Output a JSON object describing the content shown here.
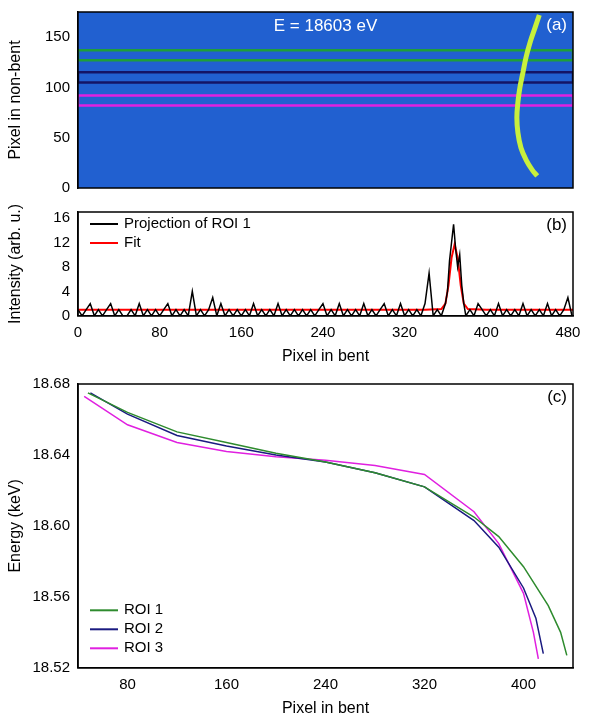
{
  "chart_data": [
    {
      "type": "image",
      "title": "E = 18603 eV",
      "annotations": [
        "(a)"
      ],
      "y_label": "Pixel in non-bent",
      "xlim": [
        0,
        485
      ],
      "ylim": [
        0,
        175
      ],
      "yticks": [
        0,
        50,
        100,
        150
      ],
      "tick_labels": "y",
      "grid": false,
      "series": [
        {
          "color": "#c8f03c",
          "x": [
            452,
            448,
            443,
            439,
            436,
            433,
            431,
            430,
            431,
            434,
            439,
            445,
            450
          ],
          "values": [
            172,
            160,
            145,
            130,
            115,
            100,
            85,
            70,
            55,
            40,
            28,
            18,
            12
          ]
        }
      ],
      "rois": [
        {
          "color": "#1f9e3a",
          "x": [
            0,
            485
          ],
          "y": [
            127,
            137
          ]
        },
        {
          "color": "#141466",
          "x": [
            0,
            485
          ],
          "y": [
            105,
            115
          ]
        },
        {
          "color": "#e020e0",
          "x": [
            0,
            485
          ],
          "y": [
            82,
            92
          ]
        }
      ]
    },
    {
      "type": "line",
      "annotations": [
        "(b)"
      ],
      "x_label": "Pixel in bent",
      "y_label": "Intensity (arb. u.)",
      "xlim": [
        0,
        485
      ],
      "xticks": [
        0,
        80,
        160,
        240,
        320,
        400,
        480
      ],
      "ylim": [
        0,
        17
      ],
      "yticks": [
        0,
        4,
        8,
        12,
        16
      ],
      "grid": false,
      "legend": "upper left",
      "series": [
        {
          "name": "Projection of ROI 1",
          "color": "#000000",
          "x": [
            0,
            4,
            8,
            12,
            16,
            20,
            24,
            28,
            32,
            36,
            40,
            44,
            48,
            52,
            56,
            60,
            64,
            68,
            72,
            76,
            80,
            84,
            88,
            92,
            96,
            100,
            104,
            108,
            112,
            116,
            120,
            124,
            128,
            132,
            136,
            140,
            144,
            148,
            152,
            156,
            160,
            164,
            168,
            172,
            176,
            180,
            184,
            188,
            192,
            196,
            200,
            204,
            208,
            212,
            216,
            220,
            224,
            228,
            232,
            236,
            240,
            244,
            248,
            252,
            256,
            260,
            264,
            268,
            272,
            276,
            280,
            284,
            288,
            292,
            296,
            300,
            304,
            308,
            312,
            316,
            320,
            324,
            328,
            332,
            336,
            340,
            344,
            348,
            352,
            356,
            360,
            362,
            364,
            366,
            368,
            370,
            372,
            374,
            376,
            378,
            380,
            384,
            388,
            392,
            396,
            400,
            404,
            408,
            412,
            416,
            420,
            424,
            428,
            432,
            436,
            440,
            444,
            448,
            452,
            456,
            460,
            464,
            468,
            472,
            476,
            480,
            484
          ],
          "values": [
            1,
            0,
            1,
            2,
            0,
            1,
            0,
            1,
            2,
            0,
            1,
            0,
            0,
            1,
            0,
            2,
            0,
            1,
            0,
            1,
            0,
            1,
            2,
            0,
            1,
            0,
            1,
            0,
            4,
            0,
            1,
            0,
            1,
            3,
            0,
            2,
            0,
            1,
            0,
            1,
            0,
            1,
            0,
            2,
            0,
            1,
            0,
            1,
            0,
            2,
            0,
            1,
            0,
            1,
            0,
            1,
            0,
            1,
            0,
            1,
            2,
            0,
            1,
            0,
            2,
            0,
            1,
            0,
            1,
            0,
            2,
            0,
            1,
            0,
            1,
            2,
            0,
            1,
            0,
            2,
            0,
            1,
            0,
            1,
            0,
            2,
            7,
            0,
            1,
            0,
            2,
            4,
            9,
            12,
            15,
            11,
            8,
            10,
            5,
            2,
            0,
            1,
            0,
            2,
            1,
            0,
            1,
            0,
            2,
            0,
            1,
            0,
            1,
            0,
            2,
            0,
            1,
            0,
            1,
            0,
            2,
            0,
            1,
            0,
            1,
            3,
            0
          ]
        },
        {
          "name": "Fit",
          "color": "#ff0000",
          "x": [
            0,
            340,
            356,
            360,
            363,
            366,
            369,
            372,
            375,
            378,
            382,
            400,
            485
          ],
          "values": [
            1,
            1,
            1.1,
            2,
            5,
            9.5,
            11.7,
            9.5,
            5,
            2,
            1.1,
            1,
            1
          ]
        }
      ]
    },
    {
      "type": "line",
      "annotations": [
        "(c)"
      ],
      "x_label": "Pixel in bent",
      "y_label": "Energy (keV)",
      "xlim": [
        40,
        440
      ],
      "xticks": [
        80,
        160,
        240,
        320,
        400
      ],
      "ylim": [
        18.52,
        18.68
      ],
      "yticks": [
        18.52,
        18.56,
        {
          "value": 18.6,
          "label": "18.60"
        },
        18.64,
        18.68
      ],
      "grid": false,
      "legend": "lower left",
      "series": [
        {
          "name": "ROI 1",
          "color": "#2e8b2e",
          "x": [
            48,
            80,
            120,
            160,
            200,
            240,
            280,
            320,
            360,
            380,
            400,
            420,
            430,
            435
          ],
          "values": [
            18.675,
            18.664,
            18.653,
            18.647,
            18.641,
            18.636,
            18.63,
            18.622,
            18.605,
            18.594,
            18.577,
            18.555,
            18.54,
            18.527
          ]
        },
        {
          "name": "ROI 2",
          "color": "#1a1a80",
          "x": [
            50,
            80,
            120,
            160,
            200,
            240,
            280,
            320,
            360,
            380,
            400,
            410,
            416
          ],
          "values": [
            18.675,
            18.663,
            18.651,
            18.645,
            18.64,
            18.636,
            18.63,
            18.622,
            18.603,
            18.588,
            18.565,
            18.548,
            18.528
          ]
        },
        {
          "name": "ROI 3",
          "color": "#e020e0",
          "x": [
            45,
            80,
            120,
            160,
            200,
            240,
            280,
            320,
            360,
            380,
            400,
            408,
            412
          ],
          "values": [
            18.673,
            18.657,
            18.647,
            18.642,
            18.639,
            18.637,
            18.634,
            18.629,
            18.608,
            18.59,
            18.562,
            18.54,
            18.525
          ]
        }
      ]
    }
  ]
}
